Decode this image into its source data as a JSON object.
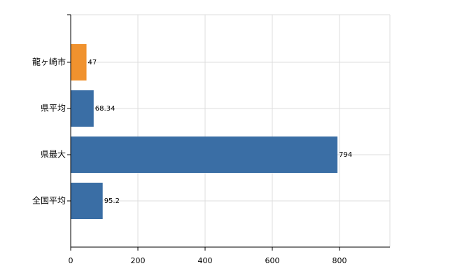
{
  "chart_data": {
    "type": "hbar",
    "categories": [
      "龍ヶ崎市",
      "県平均",
      "県最大",
      "全国平均"
    ],
    "values": [
      47,
      68.34,
      794,
      95.2
    ],
    "colors": [
      "#f0922e",
      "#3a6ea5",
      "#3a6ea5",
      "#3a6ea5"
    ],
    "xlim": [
      0,
      950
    ],
    "xticks": [
      0,
      200,
      400,
      600,
      800
    ],
    "grid": true
  }
}
